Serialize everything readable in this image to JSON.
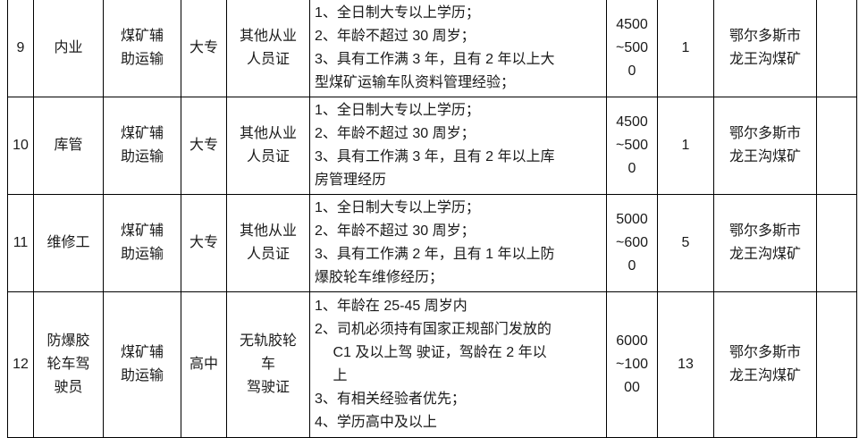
{
  "table": {
    "rows": [
      {
        "no": "9",
        "position": "内业",
        "department": "煤矿辅\n助运输",
        "education": "大专",
        "certificate": "其他从业\n人员证",
        "requirements": "1、全日制大专以上学历；\n2、年龄不超过 30 周岁；\n3、具有工作满 3 年，且有 2 年以上大\n型煤矿运输车队资料管理经验；",
        "salary": "4500\n~500\n0",
        "headcount": "1",
        "location": "鄂尔多斯市\n龙王沟煤矿",
        "extra": ""
      },
      {
        "no": "10",
        "position": "库管",
        "department": "煤矿辅\n助运输",
        "education": "大专",
        "certificate": "其他从业\n人员证",
        "requirements": "1、全日制大专以上学历；\n2、年龄不超过 30 周岁；\n3、具有工作满 3 年，且有 2 年以上库\n房管理经历",
        "salary": "4500\n~500\n0",
        "headcount": "1",
        "location": "鄂尔多斯市\n龙王沟煤矿",
        "extra": ""
      },
      {
        "no": "11",
        "position": "维修工",
        "department": "煤矿辅\n助运输",
        "education": "大专",
        "certificate": "其他从业\n人员证",
        "requirements": "1、全日制大专以上学历；\n2、年龄不超过 30 周岁；\n3、具有工作满 2 年，且有 1 年以上防\n爆胶轮车维修经历；",
        "salary": "5000\n~600\n0",
        "headcount": "5",
        "location": "鄂尔多斯市\n龙王沟煤矿",
        "extra": ""
      },
      {
        "no": "12",
        "position": "防爆胶\n轮车驾\n驶员",
        "department": "煤矿辅\n助运输",
        "education": "高中",
        "certificate": "无轨胶轮\n车\n驾驶证",
        "requirements": "1、年龄在 25-45 周岁内\n2、司机必须持有国家正规部门发放的\n　 C1 及以上驾 驶证，驾龄在 2 年以\n　 上\n3、有相关经验者优先；\n4、学历高中及以上",
        "salary": "6000\n~100\n00",
        "headcount": "13",
        "location": "鄂尔多斯市\n龙王沟煤矿",
        "extra": ""
      }
    ]
  }
}
